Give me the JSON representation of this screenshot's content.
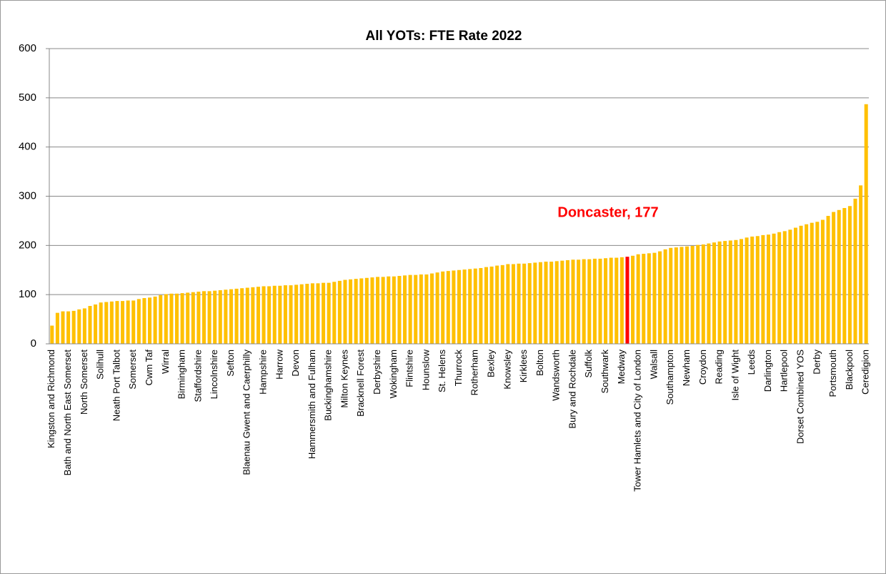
{
  "chart_data": {
    "type": "bar",
    "title": "All YOTs: FTE Rate 2022",
    "categories": [
      "Kingston and Richmond",
      null,
      null,
      "Bath and North East Somerset",
      null,
      null,
      "North Somerset",
      null,
      null,
      "Solihull",
      null,
      null,
      "Neath Port Talbot",
      null,
      null,
      "Somerset",
      null,
      null,
      "Cwm Taf",
      null,
      null,
      "Wirral",
      null,
      null,
      "Birmingham",
      null,
      null,
      "Staffordshire",
      null,
      null,
      "Lincolnshire",
      null,
      null,
      "Sefton",
      null,
      null,
      "Blaenau Gwent and Caerphilly",
      null,
      null,
      "Hampshire",
      null,
      null,
      "Harrow",
      null,
      null,
      "Devon",
      null,
      null,
      "Hammersmith and Fulham",
      null,
      null,
      "Buckinghamshire",
      null,
      null,
      "Milton Keynes",
      null,
      null,
      "Bracknell Forest",
      null,
      null,
      "Derbyshire",
      null,
      null,
      "Wokingham",
      null,
      null,
      "Flintshire",
      null,
      null,
      "Hounslow",
      null,
      null,
      "St. Helens",
      null,
      null,
      "Thurrock",
      null,
      null,
      "Rotherham",
      null,
      null,
      "Bexley",
      null,
      null,
      "Knowsley",
      null,
      null,
      "Kirklees",
      null,
      null,
      "Bolton",
      null,
      null,
      "Wandsworth",
      null,
      null,
      "Bury and Rochdale",
      null,
      null,
      "Suffolk",
      null,
      null,
      "Southwark",
      null,
      null,
      "Medway",
      null,
      null,
      "Tower Hamlets and City of London",
      null,
      null,
      "Walsall",
      null,
      null,
      "Southampton",
      null,
      null,
      "Newham",
      null,
      null,
      "Croydon",
      null,
      null,
      "Reading",
      null,
      null,
      "Isle of Wight",
      null,
      null,
      "Leeds",
      null,
      null,
      "Darlington",
      null,
      null,
      "Hartlepool",
      null,
      null,
      "Dorset Combined YOS",
      null,
      null,
      "Derby",
      null,
      null,
      "Portsmouth",
      null,
      null,
      "Blackpool",
      null,
      null,
      "Ceredigion"
    ],
    "values": [
      37,
      63,
      66,
      66,
      67,
      70,
      72,
      77,
      80,
      84,
      85,
      86,
      87,
      87,
      88,
      88,
      91,
      93,
      94,
      96,
      99,
      101,
      102,
      102,
      103,
      104,
      105,
      106,
      107,
      107,
      108,
      109,
      110,
      111,
      112,
      113,
      114,
      115,
      116,
      117,
      117,
      118,
      118,
      119,
      119,
      120,
      121,
      122,
      123,
      123,
      124,
      124,
      126,
      128,
      130,
      131,
      132,
      133,
      134,
      135,
      136,
      136,
      137,
      137,
      138,
      139,
      140,
      140,
      141,
      141,
      143,
      145,
      147,
      148,
      149,
      150,
      151,
      152,
      153,
      154,
      156,
      157,
      159,
      160,
      162,
      162,
      163,
      163,
      164,
      165,
      166,
      167,
      167,
      168,
      169,
      170,
      171,
      171,
      172,
      172,
      173,
      173,
      174,
      175,
      175,
      176,
      177,
      179,
      182,
      183,
      184,
      185,
      188,
      192,
      195,
      196,
      197,
      198,
      199,
      201,
      202,
      204,
      206,
      208,
      209,
      210,
      211,
      213,
      216,
      218,
      219,
      221,
      222,
      224,
      227,
      229,
      232,
      236,
      240,
      243,
      246,
      248,
      252,
      260,
      268,
      272,
      276,
      280,
      295,
      322,
      487
    ],
    "colors": [
      "#ffc000",
      "#ffc000",
      "#ffc000",
      "#ffc000",
      "#ffc000",
      "#ffc000",
      "#ffc000",
      "#ffc000",
      "#ffc000",
      "#ffc000",
      "#ffc000",
      "#ffc000",
      "#ffc000",
      "#ffc000",
      "#ffc000",
      "#ffc000",
      "#ffc000",
      "#ffc000",
      "#ffc000",
      "#ffc000",
      "#ffc000",
      "#ffc000",
      "#ffc000",
      "#ffc000",
      "#ffc000",
      "#ffc000",
      "#ffc000",
      "#ffc000",
      "#ffc000",
      "#ffc000",
      "#ffc000",
      "#ffc000",
      "#ffc000",
      "#ffc000",
      "#ffc000",
      "#ffc000",
      "#ffc000",
      "#ffc000",
      "#ffc000",
      "#ffc000",
      "#ffc000",
      "#ffc000",
      "#ffc000",
      "#ffc000",
      "#ffc000",
      "#ffc000",
      "#ffc000",
      "#ffc000",
      "#ffc000",
      "#ffc000",
      "#ffc000",
      "#ffc000",
      "#ffc000",
      "#ffc000",
      "#ffc000",
      "#ffc000",
      "#ffc000",
      "#ffc000",
      "#ffc000",
      "#ffc000",
      "#ffc000",
      "#ffc000",
      "#ffc000",
      "#ffc000",
      "#ffc000",
      "#ffc000",
      "#ffc000",
      "#ffc000",
      "#ffc000",
      "#ffc000",
      "#ffc000",
      "#ffc000",
      "#ffc000",
      "#ffc000",
      "#ffc000",
      "#ffc000",
      "#ffc000",
      "#ffc000",
      "#ffc000",
      "#ffc000",
      "#ffc000",
      "#ffc000",
      "#ffc000",
      "#ffc000",
      "#ffc000",
      "#ffc000",
      "#ffc000",
      "#ffc000",
      "#ffc000",
      "#ffc000",
      "#ffc000",
      "#ffc000",
      "#ffc000",
      "#ffc000",
      "#ffc000",
      "#ffc000",
      "#ffc000",
      "#ffc000",
      "#ffc000",
      "#ffc000",
      "#ffc000",
      "#ffc000",
      "#ffc000",
      "#ffc000",
      "#ffc000",
      "#ffc000",
      "#ff0000",
      "#ffc000",
      "#ffc000",
      "#ffc000",
      "#ffc000",
      "#ffc000",
      "#ffc000",
      "#ffc000",
      "#ffc000",
      "#ffc000",
      "#ffc000",
      "#ffc000",
      "#ffc000",
      "#ffc000",
      "#ffc000",
      "#ffc000",
      "#ffc000",
      "#ffc000",
      "#ffc000",
      "#ffc000",
      "#ffc000",
      "#ffc000",
      "#ffc000",
      "#ffc000",
      "#ffc000",
      "#ffc000",
      "#ffc000",
      "#ffc000",
      "#ffc000",
      "#ffc000",
      "#ffc000",
      "#ffc000",
      "#ffc000",
      "#ffc000",
      "#ffc000",
      "#ffc000",
      "#ffc000",
      "#ffc000",
      "#ffc000",
      "#ffc000",
      "#ffc000",
      "#ffc000",
      "#ffc000",
      "#ffc000",
      "#ffc000"
    ],
    "annotation": {
      "text": "Doncaster, 177",
      "color": "#ff0000"
    },
    "ylim": [
      0,
      600
    ],
    "yticks": [
      0,
      100,
      200,
      300,
      400,
      500,
      600
    ],
    "grid": true
  }
}
